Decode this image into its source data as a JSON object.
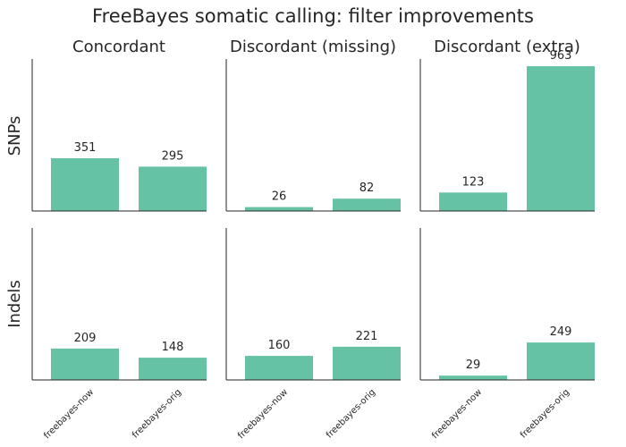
{
  "chart_data": {
    "type": "bar",
    "title": "FreeBayes somatic calling: filter improvements",
    "bar_color": "#66c2a5",
    "text_color": "#262626",
    "axis_color": "#262626",
    "categories": [
      "freebayes-now",
      "freebayes-orig"
    ],
    "columns": [
      "Concordant",
      "Discordant (missing)",
      "Discordant (extra)"
    ],
    "rows": [
      "SNPs",
      "Indels"
    ],
    "ylim": [
      0,
      1011
    ],
    "grid": false,
    "panels": [
      {
        "row": "SNPs",
        "column": "Concordant",
        "values": [
          351,
          295
        ],
        "labels": [
          "351",
          "295"
        ]
      },
      {
        "row": "SNPs",
        "column": "Discordant (missing)",
        "values": [
          26,
          82
        ],
        "labels": [
          "26",
          "82"
        ]
      },
      {
        "row": "SNPs",
        "column": "Discordant (extra)",
        "values": [
          123,
          963
        ],
        "labels": [
          "123",
          "963"
        ]
      },
      {
        "row": "Indels",
        "column": "Concordant",
        "values": [
          209,
          148
        ],
        "labels": [
          "209",
          "148"
        ]
      },
      {
        "row": "Indels",
        "column": "Discordant (missing)",
        "values": [
          160,
          221
        ],
        "labels": [
          "160",
          "221"
        ]
      },
      {
        "row": "Indels",
        "column": "Discordant (extra)",
        "values": [
          29,
          249
        ],
        "labels": [
          "29",
          "249"
        ]
      }
    ]
  }
}
